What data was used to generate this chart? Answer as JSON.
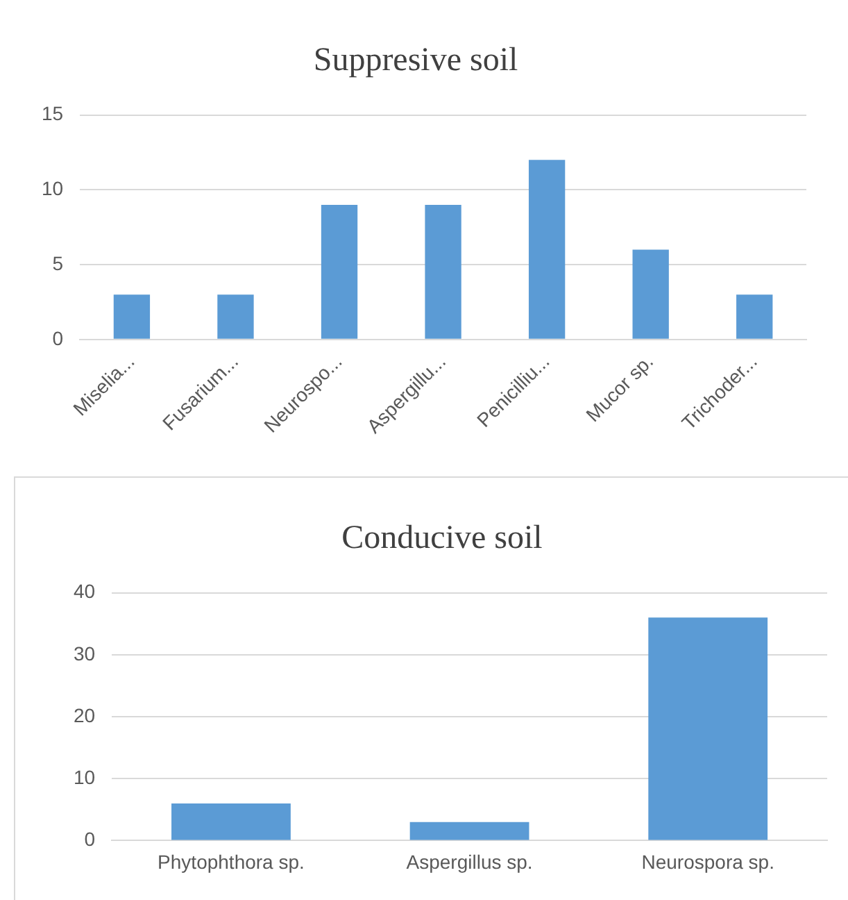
{
  "chart_data": [
    {
      "type": "bar",
      "title": "Suppresive soil",
      "categories": [
        "Miselia...",
        "Fusarium...",
        "Neurospo...",
        "Aspergillu...",
        "Penicilliu...",
        "Mucor sp.",
        "Trichoder..."
      ],
      "values": [
        3,
        3,
        9,
        9,
        12,
        6,
        3
      ],
      "color": "#5b9bd5",
      "ylim": [
        0,
        15
      ],
      "yticks": [
        0,
        5,
        10,
        15
      ],
      "grid": "y"
    },
    {
      "type": "bar",
      "title": "Conducive soil",
      "categories": [
        "Phytophthora sp.",
        "Aspergillus sp.",
        "Neurospora sp."
      ],
      "values": [
        6,
        3,
        36
      ],
      "color": "#5b9bd5",
      "ylim": [
        0,
        40
      ],
      "yticks": [
        0,
        10,
        20,
        30,
        40
      ],
      "grid": "y"
    }
  ]
}
